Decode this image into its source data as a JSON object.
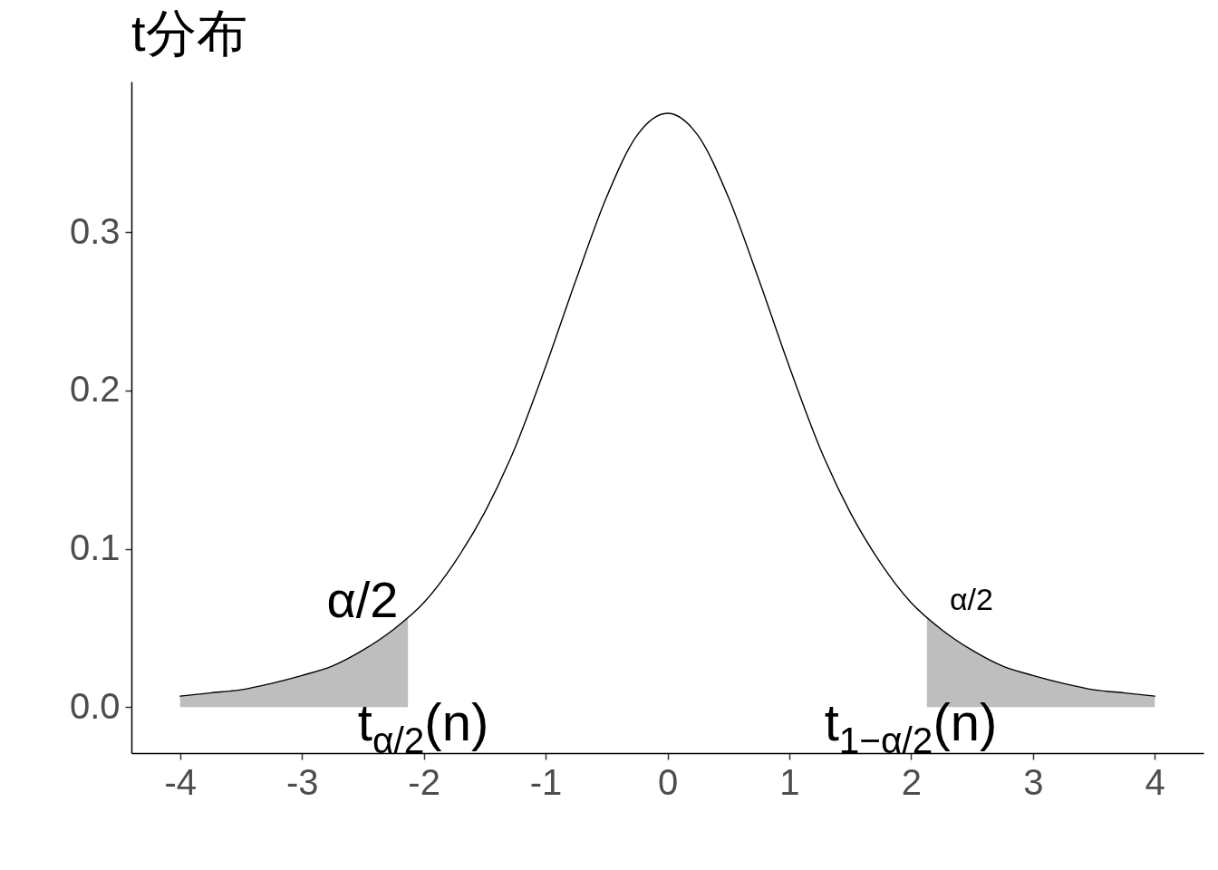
{
  "chart_data": {
    "type": "line",
    "title": "t分布",
    "xlim": [
      -4.4,
      4.4
    ],
    "xticks": [
      -4,
      -3,
      -2,
      -1,
      0,
      1,
      2,
      3,
      4
    ],
    "ylim": [
      -0.029,
      0.395
    ],
    "yticks": [
      {
        "value": 0,
        "label": "0.0"
      },
      0.1,
      0.2,
      0.3
    ],
    "grid": false,
    "series": [
      {
        "type": "area",
        "color": "#bebebe",
        "x": [
          -4,
          -3.75,
          -3.5,
          -3.25,
          -3,
          -2.75,
          -2.5,
          -2.25,
          -2.13
        ],
        "values": [
          0.007,
          0.009,
          0.011,
          0.015,
          0.02,
          0.026,
          0.036,
          0.049,
          0.056
        ]
      },
      {
        "type": "area",
        "color": "#bebebe",
        "x": [
          2.13,
          2.25,
          2.5,
          2.75,
          3,
          3.25,
          3.5,
          3.75,
          4
        ],
        "values": [
          0.056,
          0.049,
          0.036,
          0.026,
          0.02,
          0.015,
          0.011,
          0.009,
          0.007
        ]
      },
      {
        "color": "#000000",
        "x": [
          -4,
          -3.75,
          -3.5,
          -3.25,
          -3,
          -2.75,
          -2.5,
          -2.25,
          -2,
          -1.75,
          -1.5,
          -1.25,
          -1,
          -0.75,
          -0.5,
          -0.25,
          0,
          0.25,
          0.5,
          0.75,
          1,
          1.25,
          1.5,
          1.75,
          2,
          2.25,
          2.5,
          2.75,
          3,
          3.25,
          3.5,
          3.75,
          4
        ],
        "values": [
          0.007,
          0.009,
          0.011,
          0.015,
          0.02,
          0.026,
          0.036,
          0.049,
          0.066,
          0.091,
          0.123,
          0.164,
          0.215,
          0.27,
          0.322,
          0.361,
          0.375,
          0.361,
          0.322,
          0.27,
          0.215,
          0.164,
          0.123,
          0.091,
          0.066,
          0.049,
          0.036,
          0.026,
          0.02,
          0.015,
          0.011,
          0.009,
          0.007
        ]
      }
    ],
    "annotations": [
      "α/2",
      "α/2",
      "t$_{α/2}$(n)",
      "t$_{1−α/2}$(n)"
    ]
  }
}
